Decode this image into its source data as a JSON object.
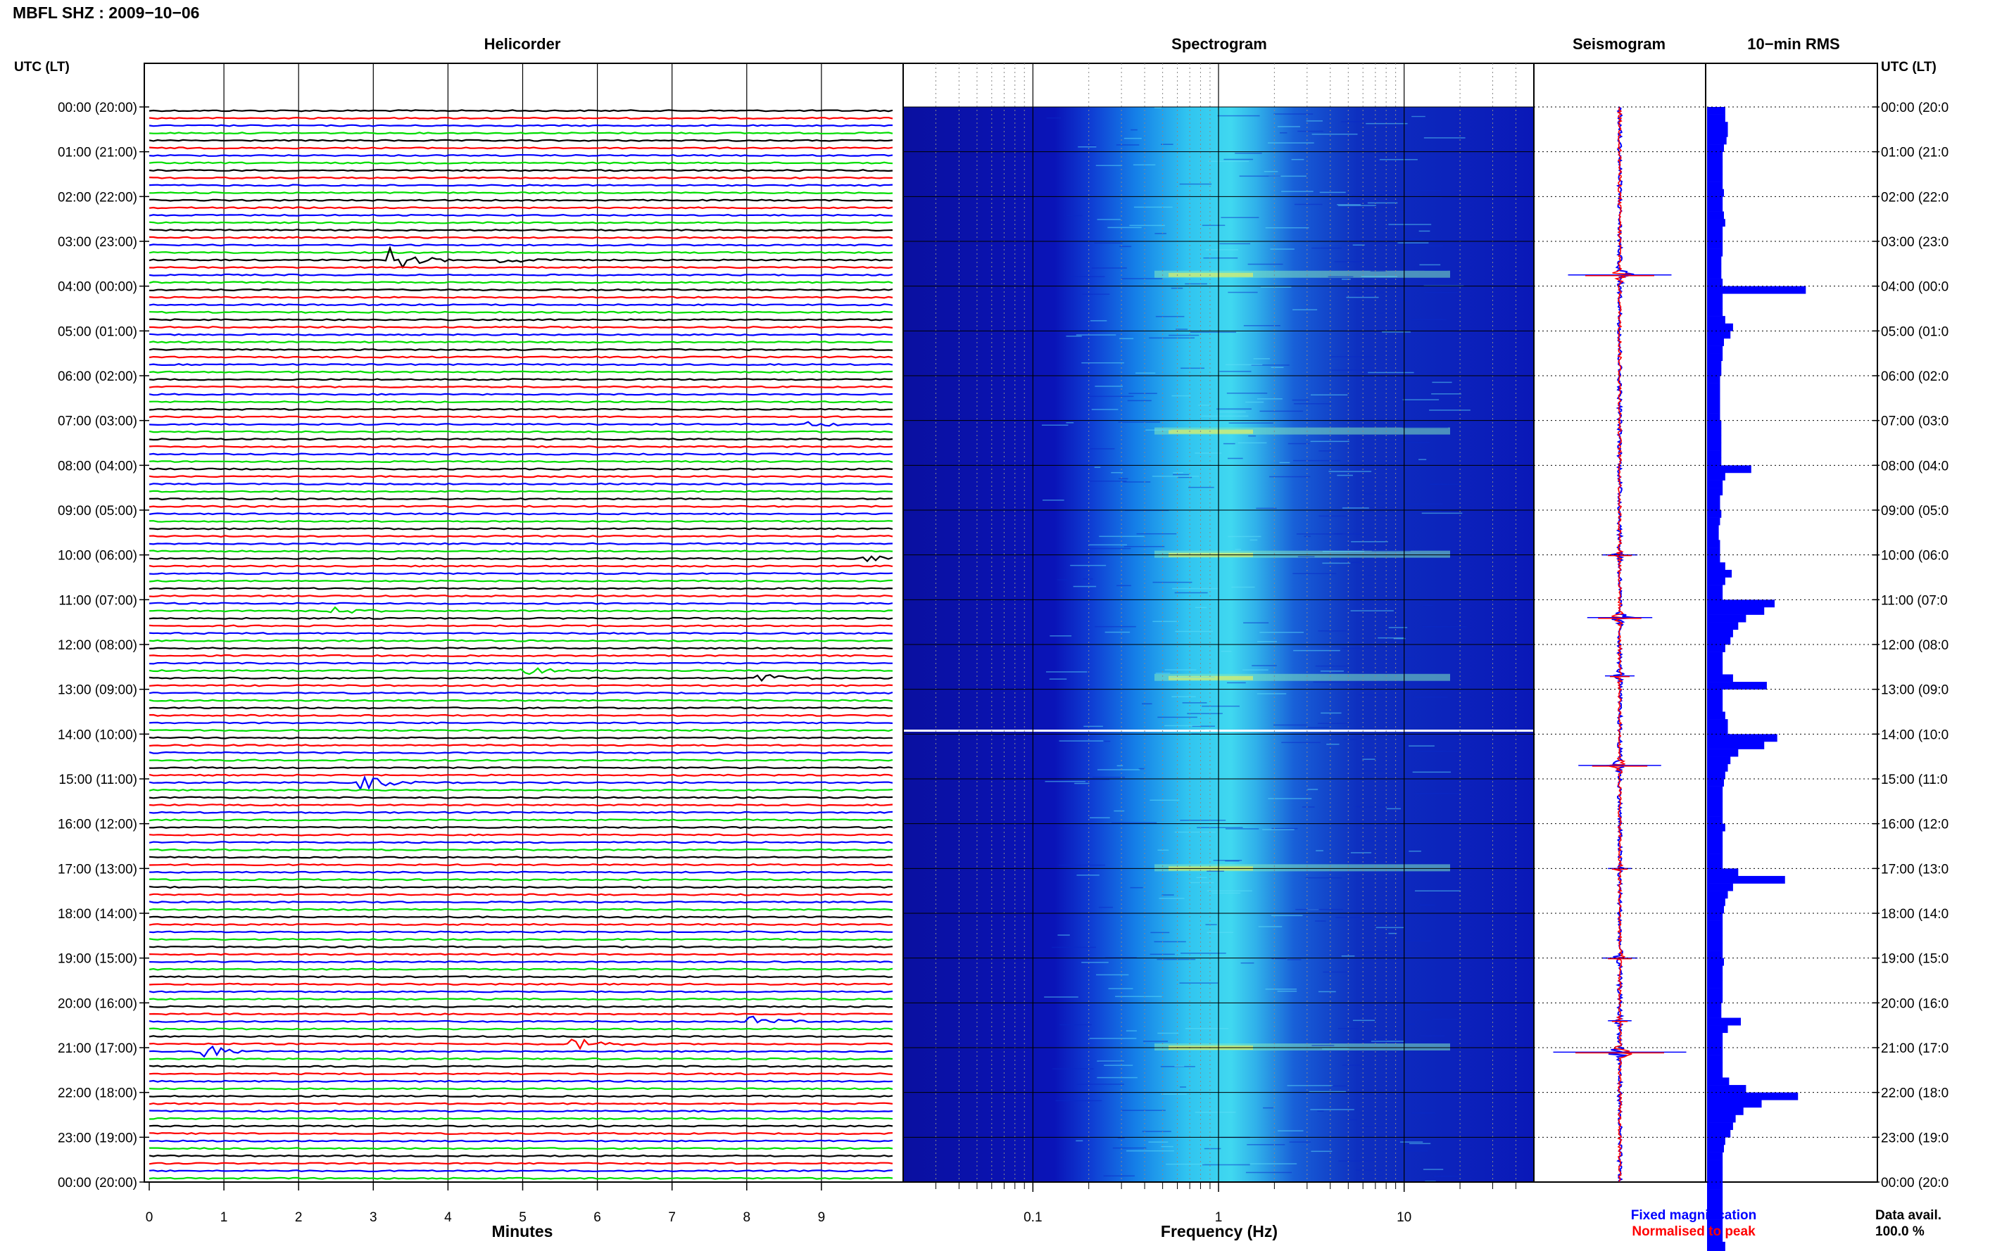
{
  "title": "MBFL SHZ : 2009−10−06",
  "panels": {
    "helicorder": "Helicorder",
    "spectrogram": "Spectrogram",
    "seismogram": "Seismogram",
    "rms": "10−min RMS"
  },
  "axis_headers": {
    "left": "UTC (LT)",
    "right": "UTC (LT)"
  },
  "time_labels": [
    "00:00 (20:00)",
    "01:00 (21:00)",
    "02:00 (22:00)",
    "03:00 (23:00)",
    "04:00 (00:00)",
    "05:00 (01:00)",
    "06:00 (02:00)",
    "07:00 (03:00)",
    "08:00 (04:00)",
    "09:00 (05:00)",
    "10:00 (06:00)",
    "11:00 (07:00)",
    "12:00 (08:00)",
    "13:00 (09:00)",
    "14:00 (10:00)",
    "15:00 (11:00)",
    "16:00 (12:00)",
    "17:00 (13:00)",
    "18:00 (14:00)",
    "19:00 (15:00)",
    "20:00 (16:00)",
    "21:00 (17:00)",
    "22:00 (18:00)",
    "23:00 (19:00)",
    "00:00 (20:00)"
  ],
  "right_time_labels": [
    "00:00 (20:0",
    "01:00 (21:0",
    "02:00 (22:0",
    "03:00 (23:0",
    "04:00 (00:0",
    "05:00 (01:0",
    "06:00 (02:0",
    "07:00 (03:0",
    "08:00 (04:0",
    "09:00 (05:0",
    "10:00 (06:0",
    "11:00 (07:0",
    "12:00 (08:0",
    "13:00 (09:0",
    "14:00 (10:0",
    "15:00 (11:0",
    "16:00 (12:0",
    "17:00 (13:0",
    "18:00 (14:0",
    "19:00 (15:0",
    "20:00 (16:0",
    "21:00 (17:0",
    "22:00 (18:0",
    "23:00 (19:0",
    "00:00 (20:0"
  ],
  "minutes_ticks": [
    "0",
    "1",
    "2",
    "3",
    "4",
    "5",
    "6",
    "7",
    "8",
    "9"
  ],
  "minutes_label": "Minutes",
  "frequency_ticks": [
    "0.1",
    "1",
    "10"
  ],
  "frequency_label": "Frequency (Hz)",
  "legend": {
    "fixed": "Fixed magnification",
    "normalised": "Normalised to peak",
    "fixed_color": "#0000ff",
    "normalised_color": "#ff0000"
  },
  "data_avail": {
    "label": "Data avail.",
    "value": "100.0 %"
  },
  "colors": {
    "trace_cycle": [
      "#000000",
      "#ff0000",
      "#0000ff",
      "#00dd00"
    ],
    "spectrogram_base": "#0a14b8",
    "rms_bar": "#0000ff"
  },
  "chart_data": [
    {
      "type": "line",
      "name": "helicorder",
      "title": "Helicorder",
      "xlabel": "Minutes",
      "xlim": [
        0,
        10
      ],
      "rows_per_hour": 6,
      "ylabel": "UTC (LT)",
      "events": [
        {
          "hour": 3.33,
          "minute": 3.2,
          "amp": 9,
          "color": "#0000ff"
        },
        {
          "hour": 3.33,
          "minute": 4.7,
          "amp": 3,
          "color": "#0000ff"
        },
        {
          "hour": 10.0,
          "minute": 9.6,
          "amp": 3,
          "color": "#000000"
        },
        {
          "hour": 11.17,
          "minute": 2.4,
          "amp": 3,
          "color": "#000000"
        },
        {
          "hour": 12.5,
          "minute": 5.0,
          "amp": 3,
          "color": "#00dd00"
        },
        {
          "hour": 12.67,
          "minute": 8.2,
          "amp": 3,
          "color": "#000000"
        },
        {
          "hour": 15.0,
          "minute": 2.9,
          "amp": 4,
          "color": "#000000"
        },
        {
          "hour": 20.33,
          "minute": 8.1,
          "amp": 3,
          "color": "#0000ff"
        },
        {
          "hour": 20.83,
          "minute": 5.7,
          "amp": 5,
          "color": "#0000ff"
        },
        {
          "hour": 21.0,
          "minute": 0.7,
          "amp": 5,
          "color": "#00dd00"
        },
        {
          "hour": 7.0,
          "minute": 8.8,
          "amp": 2,
          "color": "#00dd00"
        }
      ]
    },
    {
      "type": "heatmap",
      "name": "spectrogram",
      "title": "Spectrogram",
      "xlabel": "Frequency (Hz)",
      "xscale": "log",
      "xlim": [
        0.02,
        50
      ],
      "xticks": [
        0.1,
        1,
        10
      ],
      "bright_hours": [
        3.75,
        7.25,
        10.0,
        12.75,
        17.0,
        21.0
      ]
    },
    {
      "type": "line",
      "name": "seismogram",
      "title": "Seismogram",
      "series": [
        {
          "name": "Fixed magnification",
          "color": "#0000ff"
        },
        {
          "name": "Normalised to peak",
          "color": "#ff0000"
        }
      ],
      "spikes": [
        {
          "hour": 3.75,
          "amp": 35
        },
        {
          "hour": 10.0,
          "amp": 12
        },
        {
          "hour": 11.4,
          "amp": 22
        },
        {
          "hour": 12.7,
          "amp": 10
        },
        {
          "hour": 14.7,
          "amp": 28
        },
        {
          "hour": 17.0,
          "amp": 8
        },
        {
          "hour": 19.0,
          "amp": 12
        },
        {
          "hour": 20.4,
          "amp": 8
        },
        {
          "hour": 21.1,
          "amp": 45
        }
      ]
    },
    {
      "type": "bar",
      "name": "10-min RMS",
      "title": "10−min RMS",
      "orientation": "horizontal",
      "bins_per_hour": 6,
      "values": [
        14,
        14,
        16,
        16,
        15,
        13,
        12,
        12,
        12,
        12,
        12,
        13,
        12,
        12,
        13,
        14,
        12,
        12,
        12,
        12,
        11,
        11,
        11,
        12,
        76,
        12,
        12,
        12,
        14,
        20,
        18,
        13,
        12,
        12,
        11,
        11,
        10,
        10,
        10,
        10,
        10,
        10,
        11,
        11,
        11,
        11,
        11,
        11,
        34,
        14,
        12,
        12,
        10,
        10,
        11,
        10,
        9,
        9,
        10,
        10,
        10,
        14,
        19,
        14,
        12,
        12,
        52,
        44,
        30,
        24,
        20,
        18,
        14,
        12,
        12,
        12,
        20,
        46,
        12,
        12,
        12,
        14,
        16,
        16,
        54,
        44,
        24,
        18,
        16,
        14,
        13,
        12,
        12,
        12,
        12,
        12,
        14,
        12,
        12,
        12,
        12,
        12,
        24,
        60,
        20,
        16,
        14,
        13,
        12,
        12,
        12,
        12,
        12,
        12,
        13,
        12,
        12,
        12,
        12,
        12,
        11,
        11,
        26,
        16,
        12,
        12,
        12,
        12,
        12,
        12,
        17,
        30,
        70,
        42,
        28,
        22,
        20,
        18,
        14,
        13,
        12,
        12,
        12,
        12,
        12,
        12,
        12,
        12,
        12,
        12,
        12,
        12,
        14,
        14,
        12,
        12,
        12,
        12
      ],
      "xlim": [
        0,
        130
      ]
    }
  ]
}
